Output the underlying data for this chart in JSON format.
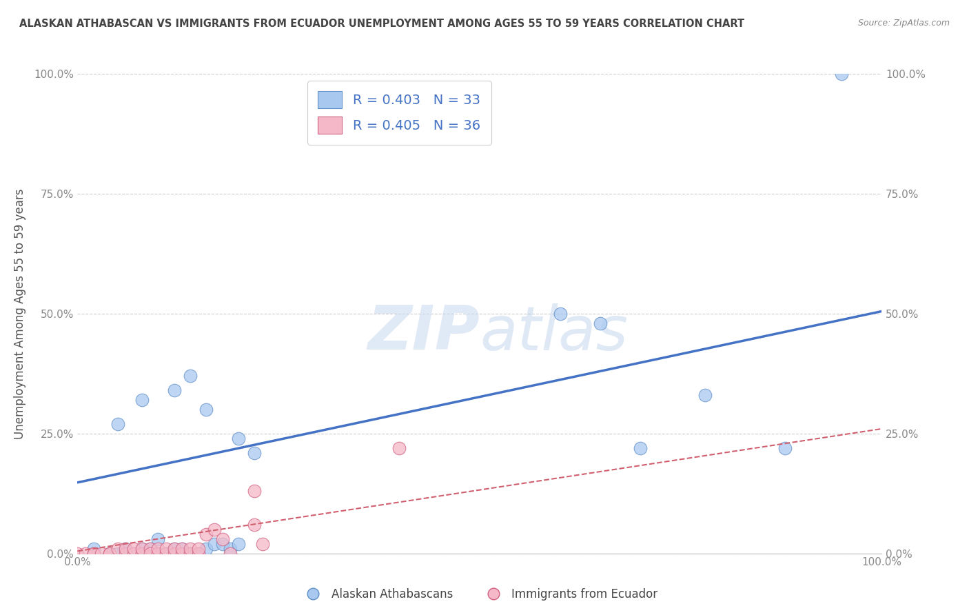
{
  "title": "ALASKAN ATHABASCAN VS IMMIGRANTS FROM ECUADOR UNEMPLOYMENT AMONG AGES 55 TO 59 YEARS CORRELATION CHART",
  "source": "Source: ZipAtlas.com",
  "ylabel": "Unemployment Among Ages 55 to 59 years",
  "xlim": [
    0,
    1.0
  ],
  "ylim": [
    0,
    1.0
  ],
  "ytick_vals": [
    0.0,
    0.25,
    0.5,
    0.75,
    1.0
  ],
  "ytick_labels": [
    "0.0%",
    "25.0%",
    "50.0%",
    "75.0%",
    "100.0%"
  ],
  "xtick_vals": [
    0.0,
    1.0
  ],
  "xtick_labels": [
    "0.0%",
    "100.0%"
  ],
  "background_color": "#ffffff",
  "grid_color": "#cccccc",
  "blue_color": "#a8c8f0",
  "pink_color": "#f4b8c8",
  "blue_edge_color": "#6090c8",
  "pink_edge_color": "#d06080",
  "blue_line_color": "#4472c4",
  "pink_line_color": "#d06070",
  "title_color": "#444444",
  "tick_color": "#888888",
  "ylabel_color": "#555555",
  "legend1_r_color": "#4472c4",
  "legend1_n_color": "#333333",
  "watermark_color": "#dde8f5",
  "blue_scatter_x": [
    0.02,
    0.04,
    0.02,
    0.05,
    0.06,
    0.07,
    0.08,
    0.09,
    0.1,
    0.1,
    0.11,
    0.12,
    0.13,
    0.14,
    0.15,
    0.16,
    0.17,
    0.18,
    0.19,
    0.2,
    0.05,
    0.08,
    0.12,
    0.14,
    0.16,
    0.2,
    0.22,
    0.6,
    0.65,
    0.7,
    0.78,
    0.88,
    0.95
  ],
  "blue_scatter_y": [
    0.0,
    0.0,
    0.01,
    0.0,
    0.01,
    0.0,
    0.01,
    0.01,
    0.0,
    0.03,
    0.0,
    0.01,
    0.01,
    0.0,
    0.0,
    0.01,
    0.02,
    0.02,
    0.01,
    0.02,
    0.27,
    0.32,
    0.34,
    0.37,
    0.3,
    0.24,
    0.21,
    0.5,
    0.48,
    0.22,
    0.33,
    0.22,
    1.0
  ],
  "pink_scatter_x": [
    0.0,
    0.01,
    0.02,
    0.02,
    0.03,
    0.04,
    0.04,
    0.05,
    0.06,
    0.06,
    0.07,
    0.07,
    0.08,
    0.08,
    0.09,
    0.09,
    0.1,
    0.1,
    0.11,
    0.11,
    0.12,
    0.12,
    0.13,
    0.13,
    0.14,
    0.14,
    0.15,
    0.15,
    0.16,
    0.17,
    0.18,
    0.19,
    0.22,
    0.22,
    0.23,
    0.4
  ],
  "pink_scatter_y": [
    0.0,
    0.0,
    0.0,
    0.0,
    0.0,
    0.0,
    0.0,
    0.01,
    0.0,
    0.01,
    0.0,
    0.01,
    0.0,
    0.01,
    0.01,
    0.0,
    0.0,
    0.01,
    0.0,
    0.01,
    0.0,
    0.01,
    0.0,
    0.01,
    0.0,
    0.01,
    0.0,
    0.01,
    0.04,
    0.05,
    0.03,
    0.0,
    0.13,
    0.06,
    0.02,
    0.22
  ],
  "blue_trend_x": [
    0.0,
    1.0
  ],
  "blue_trend_y": [
    0.148,
    0.505
  ],
  "pink_trend_x": [
    0.0,
    1.0
  ],
  "pink_trend_y": [
    0.005,
    0.26
  ],
  "legend_blue_label": "Alaskan Athabascans",
  "legend_pink_label": "Immigrants from Ecuador",
  "legend1_label": "R = 0.403   N = 33",
  "legend2_label": "R = 0.405   N = 36"
}
